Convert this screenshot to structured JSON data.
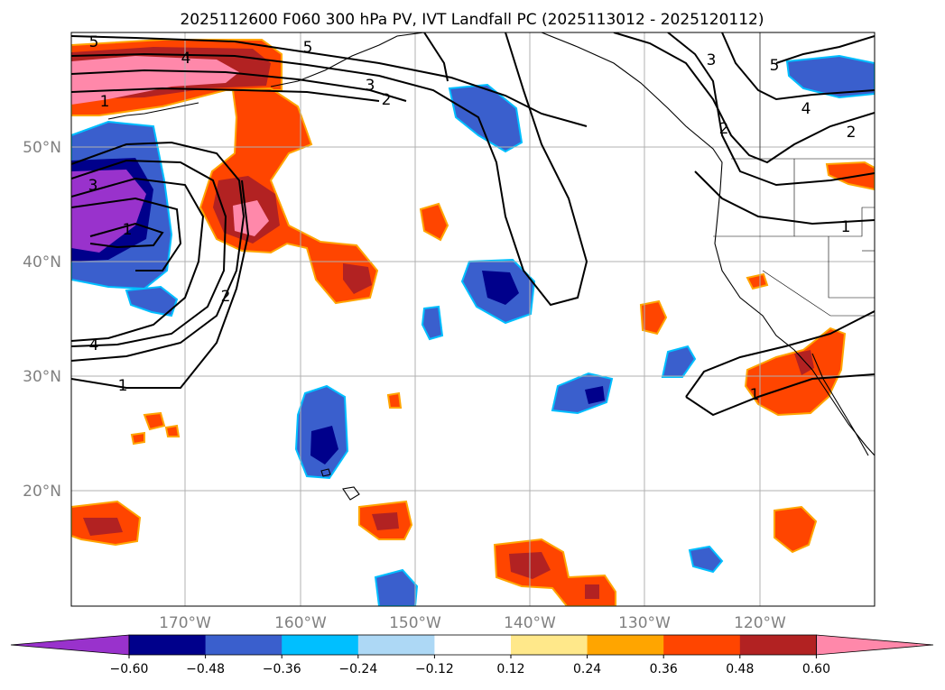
{
  "title": "2025112600 F060 300 hPa PV, IVT Landfall PC (2025113012 - 2025120112)",
  "map": {
    "lat_labels": [
      "50°N",
      "40°N",
      "30°N",
      "20°N"
    ],
    "lon_labels": [
      "170°W",
      "160°W",
      "150°W",
      "140°W",
      "130°W",
      "120°W"
    ],
    "contour_labels": [
      "5",
      "4",
      "1",
      "5",
      "3",
      "2",
      "3",
      "5",
      "2",
      "4",
      "2",
      "3",
      "1",
      "4",
      "2",
      "1",
      "1"
    ],
    "colors": {
      "neg_060": "#9932cc",
      "neg_048": "#00008b",
      "neg_036": "#3a5fcd",
      "neg_024": "#00bfff",
      "neg_012": "#add8f5",
      "neutral": "#ffffff",
      "pos_012": "#ffe88a",
      "pos_024": "#ffa500",
      "pos_036": "#ff4500",
      "pos_048": "#b22222",
      "pos_060": "#ff88aa"
    }
  },
  "colorbar": {
    "ticks": [
      "−0.60",
      "−0.48",
      "−0.36",
      "−0.24",
      "−0.12",
      "0.12",
      "0.24",
      "0.36",
      "0.48",
      "0.60"
    ],
    "colors": [
      "#9932cc",
      "#00008b",
      "#3a5fcd",
      "#00bfff",
      "#add8f5",
      "#ffffff",
      "#ffe88a",
      "#ffa500",
      "#ff4500",
      "#b22222",
      "#ff88aa"
    ]
  }
}
